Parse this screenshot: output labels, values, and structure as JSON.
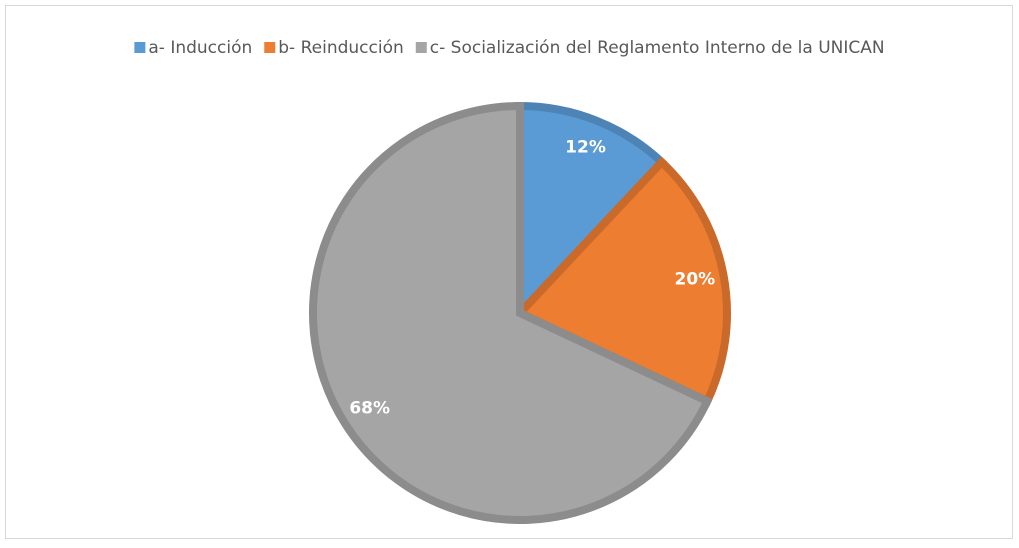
{
  "chart_data": {
    "type": "pie",
    "categories": [
      "a- Inducción",
      "b- Reinducción",
      "c- Socialización del Reglamento Interno de la UNICAN"
    ],
    "values": [
      12,
      20,
      68
    ],
    "value_labels": [
      "12%",
      "20%",
      "68%"
    ],
    "colors": [
      "#5b9bd5",
      "#ed7d31",
      "#a5a5a5"
    ],
    "legend": "top"
  }
}
